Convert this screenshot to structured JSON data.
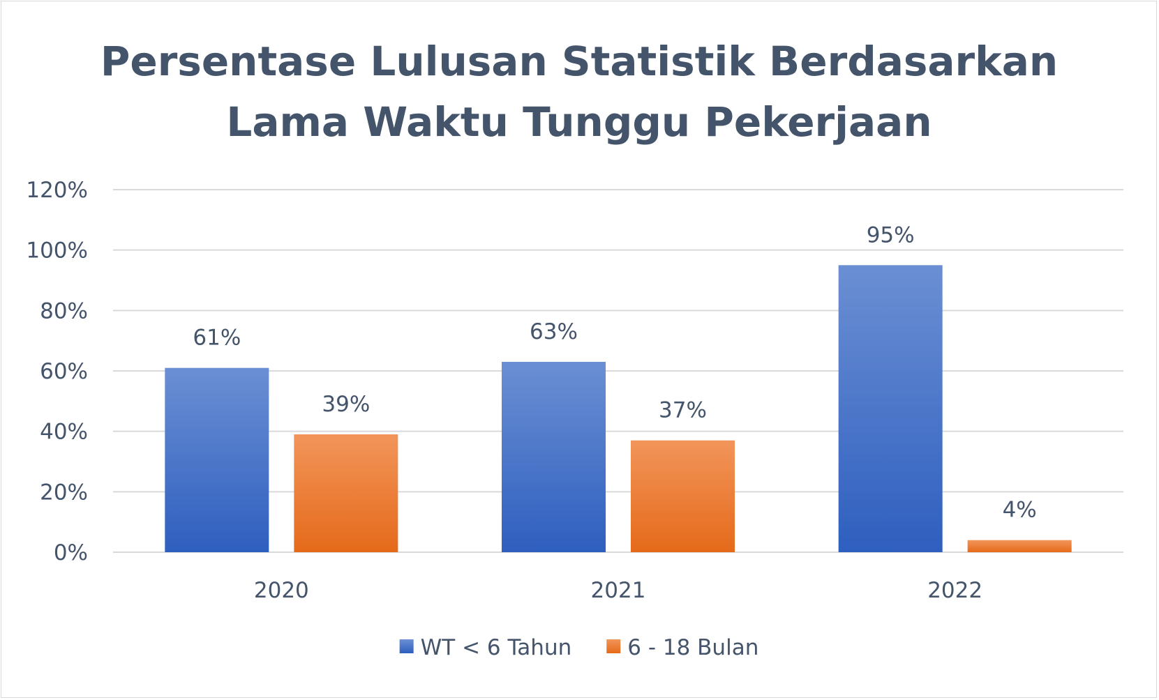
{
  "chart_data": {
    "type": "bar",
    "title_lines": [
      "Persentase Lulusan Statistik Berdasarkan",
      "Lama Waktu Tunggu Pekerjaan"
    ],
    "categories": [
      "2020",
      "2021",
      "2022"
    ],
    "series": [
      {
        "name": "WT < 6 Tahun",
        "values": [
          61,
          63,
          95
        ],
        "labels": [
          "61%",
          "63%",
          "95%"
        ],
        "color": "#4472c4"
      },
      {
        "name": "6 - 18 Bulan",
        "values": [
          39,
          37,
          4
        ],
        "labels": [
          "39%",
          "37%",
          "4%"
        ],
        "color": "#ed7d31"
      }
    ],
    "yticks": [
      "0%",
      "20%",
      "40%",
      "60%",
      "80%",
      "100%",
      "120%"
    ],
    "ylim": [
      0,
      120
    ],
    "grid": true,
    "legend": "bottom",
    "colors": {
      "text": "#44546a",
      "grid": "#d9d9d9"
    }
  }
}
